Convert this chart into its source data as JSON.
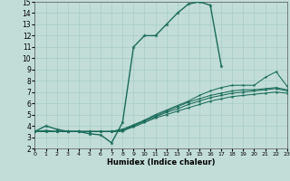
{
  "xlabel": "Humidex (Indice chaleur)",
  "xlim": [
    0,
    23
  ],
  "ylim": [
    2,
    15
  ],
  "xticks": [
    0,
    1,
    2,
    3,
    4,
    5,
    6,
    7,
    8,
    9,
    10,
    11,
    12,
    13,
    14,
    15,
    16,
    17,
    18,
    19,
    20,
    21,
    22,
    23
  ],
  "yticks": [
    2,
    3,
    4,
    5,
    6,
    7,
    8,
    9,
    10,
    11,
    12,
    13,
    14,
    15
  ],
  "bg_color": "#c2ddd8",
  "grid_color": "#a8ccc8",
  "line_color": "#1a6b5a",
  "curves": [
    {
      "x": [
        0,
        1,
        2,
        3,
        4,
        5,
        6,
        7,
        8,
        9,
        10,
        11,
        12,
        13,
        14,
        15,
        16,
        17
      ],
      "y": [
        3.5,
        4.0,
        3.7,
        3.5,
        3.5,
        3.3,
        3.2,
        2.5,
        4.3,
        11.0,
        12.0,
        12.0,
        13.0,
        14.0,
        14.8,
        15.0,
        14.7,
        9.3
      ]
    },
    {
      "x": [
        0,
        1,
        2,
        3,
        4,
        5,
        6,
        7,
        8,
        9,
        10,
        11,
        12,
        13,
        14,
        15,
        16,
        17,
        18,
        19,
        20,
        21,
        22,
        23
      ],
      "y": [
        3.5,
        3.6,
        3.5,
        3.5,
        3.5,
        3.5,
        3.5,
        3.5,
        3.5,
        4.0,
        4.5,
        5.0,
        5.4,
        5.8,
        6.2,
        6.7,
        7.1,
        7.4,
        7.6,
        7.6,
        7.6,
        8.3,
        8.8,
        7.5
      ]
    },
    {
      "x": [
        0,
        1,
        2,
        3,
        4,
        5,
        6,
        7,
        8,
        9,
        10,
        11,
        12,
        13,
        14,
        15,
        16,
        17,
        18,
        19,
        20,
        21,
        22,
        23
      ],
      "y": [
        3.5,
        3.5,
        3.5,
        3.5,
        3.5,
        3.5,
        3.5,
        3.5,
        3.7,
        4.1,
        4.5,
        4.9,
        5.3,
        5.7,
        6.1,
        6.4,
        6.7,
        6.9,
        7.1,
        7.2,
        7.2,
        7.3,
        7.4,
        7.2
      ]
    },
    {
      "x": [
        0,
        1,
        2,
        3,
        4,
        5,
        6,
        7,
        8,
        9,
        10,
        11,
        12,
        13,
        14,
        15,
        16,
        17,
        18,
        19,
        20,
        21,
        22,
        23
      ],
      "y": [
        3.5,
        3.5,
        3.5,
        3.5,
        3.5,
        3.5,
        3.5,
        3.5,
        3.7,
        4.0,
        4.4,
        4.8,
        5.2,
        5.5,
        5.9,
        6.2,
        6.5,
        6.7,
        6.9,
        7.0,
        7.1,
        7.2,
        7.3,
        7.1
      ]
    },
    {
      "x": [
        0,
        1,
        2,
        3,
        4,
        5,
        6,
        7,
        8,
        9,
        10,
        11,
        12,
        13,
        14,
        15,
        16,
        17,
        18,
        19,
        20,
        21,
        22,
        23
      ],
      "y": [
        3.5,
        3.5,
        3.5,
        3.5,
        3.5,
        3.5,
        3.5,
        3.5,
        3.6,
        3.9,
        4.3,
        4.7,
        5.0,
        5.3,
        5.6,
        5.9,
        6.2,
        6.4,
        6.6,
        6.7,
        6.8,
        6.9,
        7.0,
        6.9
      ]
    }
  ]
}
